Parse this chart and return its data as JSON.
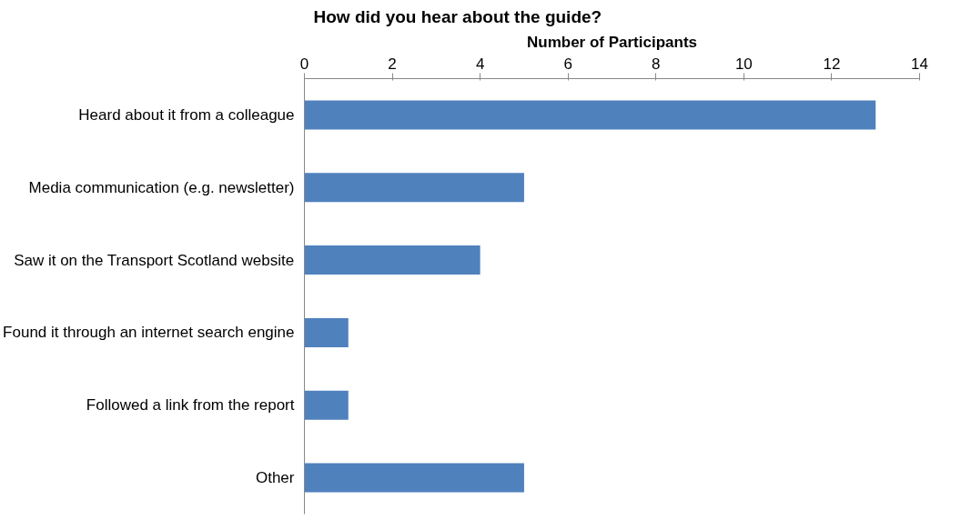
{
  "chart_data": {
    "type": "bar",
    "orientation": "horizontal",
    "title": "How did you hear about the guide?",
    "xlabel": "Number of Participants",
    "categories": [
      "Heard about it from a colleague",
      "Media communication (e.g. newsletter)",
      "Saw it on the Transport Scotland website",
      "Found it through an internet search engine",
      "Followed a link from the report",
      "Other"
    ],
    "values": [
      13,
      5,
      4,
      1,
      1,
      5
    ],
    "color": "#4f81bd",
    "xlim": [
      0,
      14
    ],
    "xticks": [
      0,
      2,
      4,
      6,
      8,
      10,
      12,
      14
    ],
    "grid": false
  }
}
